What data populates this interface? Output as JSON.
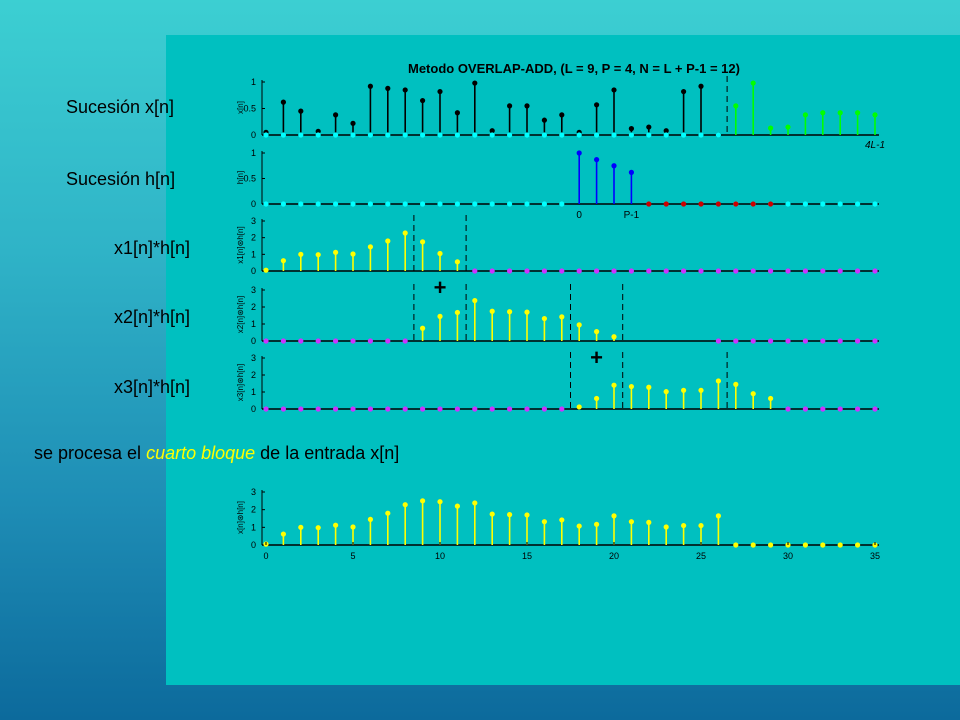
{
  "labels": {
    "x": "Sucesión x[n]",
    "h": "Sucesión h[n]",
    "c1": "x1[n]*h[n]",
    "c2": "x2[n]*h[n]",
    "c3": "x3[n]*h[n]",
    "note_pre": "se procesa el ",
    "note_hl1": "cuarto",
    "note_hl2": "bloque",
    "note_post": " de la entrada x[n]"
  },
  "colors": {
    "black": "#000000",
    "green": "#00ff00",
    "blue": "#0000ff",
    "red": "#cc0000",
    "cyan": "#00ffff",
    "yellow": "#ffff00",
    "magenta": "#cc33ff",
    "panel": "#00c0c0"
  },
  "chart_data": [
    {
      "type": "stem",
      "title": "Metodo OVERLAP-ADD, (L = 9, P = 4, N = L + P-1 = 12)",
      "ylabel": "x[n]",
      "ylim": [
        0,
        1
      ],
      "yticks": [
        "0",
        "0.5",
        "1"
      ],
      "xlim": [
        0,
        35
      ],
      "annotations": [
        "4L-1"
      ],
      "dashed_at": [
        26.5
      ],
      "series": [
        {
          "color": "black",
          "x": [
            0,
            1,
            2,
            3,
            4,
            5,
            6,
            7,
            8,
            9,
            10,
            11,
            12,
            13,
            14,
            15,
            16,
            17,
            18,
            19,
            20,
            21,
            22,
            23,
            24,
            25,
            26
          ],
          "values": [
            0.05,
            0.62,
            0.45,
            0.07,
            0.38,
            0.22,
            0.92,
            0.88,
            0.85,
            0.65,
            0.82,
            0.42,
            0.98,
            0.08,
            0.55,
            0.55,
            0.28,
            0.38,
            0.05,
            0.57,
            0.85,
            0.12,
            0.15,
            0.08,
            0.82,
            0.92,
            0.0
          ]
        },
        {
          "color": "green",
          "x": [
            27,
            28,
            29,
            30,
            31,
            32,
            33,
            34,
            35
          ],
          "values": [
            0.55,
            0.98,
            0.13,
            0.15,
            0.38,
            0.42,
            0.42,
            0.42,
            0.38
          ]
        },
        {
          "color": "cyan",
          "x": [
            0,
            1,
            2,
            3,
            4,
            5,
            6,
            7,
            8,
            9,
            10,
            11,
            12,
            13,
            14,
            15,
            16,
            17,
            18,
            19,
            20,
            21,
            22,
            23,
            24,
            25,
            26
          ],
          "values": [
            0,
            0,
            0,
            0,
            0,
            0,
            0,
            0,
            0,
            0,
            0,
            0,
            0,
            0,
            0,
            0,
            0,
            0,
            0,
            0,
            0,
            0,
            0,
            0,
            0,
            0,
            0
          ]
        }
      ]
    },
    {
      "type": "stem",
      "ylabel": "h[n]",
      "ylim": [
        0,
        1
      ],
      "yticks": [
        "0",
        "0.5",
        "1"
      ],
      "xlim": [
        0,
        35
      ],
      "xticklabels": [
        {
          "x": 18,
          "label": "0"
        },
        {
          "x": 21,
          "label": "P-1"
        }
      ],
      "series": [
        {
          "color": "cyan",
          "x": [
            0,
            1,
            2,
            3,
            4,
            5,
            6,
            7,
            8,
            9,
            10,
            11,
            12,
            13,
            14,
            15,
            16,
            17,
            27,
            28,
            29,
            30,
            31,
            32,
            33,
            34,
            35
          ],
          "values": [
            0,
            0,
            0,
            0,
            0,
            0,
            0,
            0,
            0,
            0,
            0,
            0,
            0,
            0,
            0,
            0,
            0,
            0,
            0,
            0,
            0,
            0,
            0,
            0,
            0,
            0,
            0
          ]
        },
        {
          "color": "blue",
          "x": [
            18,
            19,
            20,
            21
          ],
          "values": [
            1.0,
            0.87,
            0.75,
            0.62
          ]
        },
        {
          "color": "red",
          "x": [
            22,
            23,
            24,
            25,
            26,
            27,
            28,
            29
          ],
          "values": [
            0,
            0,
            0,
            0,
            0,
            0,
            0,
            0
          ]
        }
      ]
    },
    {
      "type": "stem",
      "ylabel": "x1[n]⊛h[n]",
      "ylim": [
        0,
        3
      ],
      "yticks": [
        "0",
        "1",
        "2",
        "3"
      ],
      "xlim": [
        0,
        35
      ],
      "dashed_at": [
        8.5,
        11.5
      ],
      "plus_at": 10,
      "series": [
        {
          "color": "yellow",
          "x": [
            0,
            1,
            2,
            3,
            4,
            5,
            6,
            7,
            8,
            9,
            10,
            11
          ],
          "values": [
            0.05,
            0.62,
            1.0,
            0.98,
            1.12,
            1.02,
            1.45,
            1.8,
            2.28,
            1.75,
            1.05,
            0.55
          ]
        },
        {
          "color": "magenta",
          "x": [
            12,
            13,
            14,
            15,
            16,
            17,
            18,
            19,
            20,
            21,
            22,
            23,
            24,
            25,
            26,
            27,
            28,
            29,
            30,
            31,
            32,
            33,
            34,
            35
          ],
          "values": [
            0,
            0,
            0,
            0,
            0,
            0,
            0,
            0,
            0,
            0,
            0,
            0,
            0,
            0,
            0,
            0,
            0,
            0,
            0,
            0,
            0,
            0,
            0,
            0
          ]
        }
      ]
    },
    {
      "type": "stem",
      "ylabel": "x2[n]⊛h[n]",
      "ylim": [
        0,
        3
      ],
      "yticks": [
        "0",
        "1",
        "2",
        "3"
      ],
      "xlim": [
        0,
        35
      ],
      "dashed_at": [
        8.5,
        11.5,
        17.5,
        20.5
      ],
      "plus_at": 19,
      "series": [
        {
          "color": "magenta",
          "x": [
            0,
            1,
            2,
            3,
            4,
            5,
            6,
            7,
            8,
            26,
            27,
            28,
            29,
            30,
            31,
            32,
            33,
            34,
            35
          ],
          "values": [
            0,
            0,
            0,
            0,
            0,
            0,
            0,
            0,
            0,
            0,
            0,
            0,
            0,
            0,
            0,
            0,
            0,
            0,
            0
          ]
        },
        {
          "color": "yellow",
          "x": [
            9,
            10,
            11,
            12,
            13,
            14,
            15,
            16,
            17,
            18,
            19,
            20
          ],
          "values": [
            0.75,
            1.45,
            1.68,
            2.38,
            1.75,
            1.72,
            1.7,
            1.32,
            1.42,
            0.95,
            0.55,
            0.25
          ]
        }
      ]
    },
    {
      "type": "stem",
      "ylabel": "x3[n]⊛h[n]",
      "ylim": [
        0,
        3
      ],
      "yticks": [
        "0",
        "1",
        "2",
        "3"
      ],
      "xlim": [
        0,
        35
      ],
      "dashed_at": [
        17.5,
        20.5,
        26.5
      ],
      "series": [
        {
          "color": "magenta",
          "x": [
            0,
            1,
            2,
            3,
            4,
            5,
            6,
            7,
            8,
            9,
            10,
            11,
            12,
            13,
            14,
            15,
            16,
            17,
            30,
            31,
            32,
            33,
            34,
            35
          ],
          "values": [
            0,
            0,
            0,
            0,
            0,
            0,
            0,
            0,
            0,
            0,
            0,
            0,
            0,
            0,
            0,
            0,
            0,
            0,
            0,
            0,
            0,
            0,
            0,
            0
          ]
        },
        {
          "color": "yellow",
          "x": [
            18,
            19,
            20,
            21,
            22,
            23,
            24,
            25,
            26,
            27,
            28,
            29
          ],
          "values": [
            0.12,
            0.62,
            1.4,
            1.32,
            1.28,
            1.02,
            1.1,
            1.1,
            1.65,
            1.45,
            0.9,
            0.62
          ]
        }
      ]
    },
    {
      "type": "stem",
      "ylabel": "x[n]⊛h[n]",
      "ylim": [
        0,
        3
      ],
      "yticks": [
        "0",
        "1",
        "2",
        "3"
      ],
      "xlim": [
        0,
        35
      ],
      "xticks": [
        "0",
        "5",
        "10",
        "15",
        "20",
        "25",
        "30",
        "35"
      ],
      "series": [
        {
          "color": "yellow",
          "x": [
            0,
            1,
            2,
            3,
            4,
            5,
            6,
            7,
            8,
            9,
            10,
            11,
            12,
            13,
            14,
            15,
            16,
            17,
            18,
            19,
            20,
            21,
            22,
            23,
            24,
            25,
            26,
            27,
            28,
            29,
            30,
            31,
            32,
            33,
            34,
            35
          ],
          "values": [
            0.05,
            0.62,
            1.0,
            0.98,
            1.12,
            1.02,
            1.45,
            1.8,
            2.28,
            2.5,
            2.45,
            2.2,
            2.38,
            1.75,
            1.72,
            1.7,
            1.32,
            1.42,
            1.07,
            1.17,
            1.65,
            1.32,
            1.28,
            1.02,
            1.1,
            1.1,
            1.65,
            0,
            0,
            0,
            0,
            0,
            0,
            0,
            0,
            0
          ]
        }
      ]
    }
  ]
}
